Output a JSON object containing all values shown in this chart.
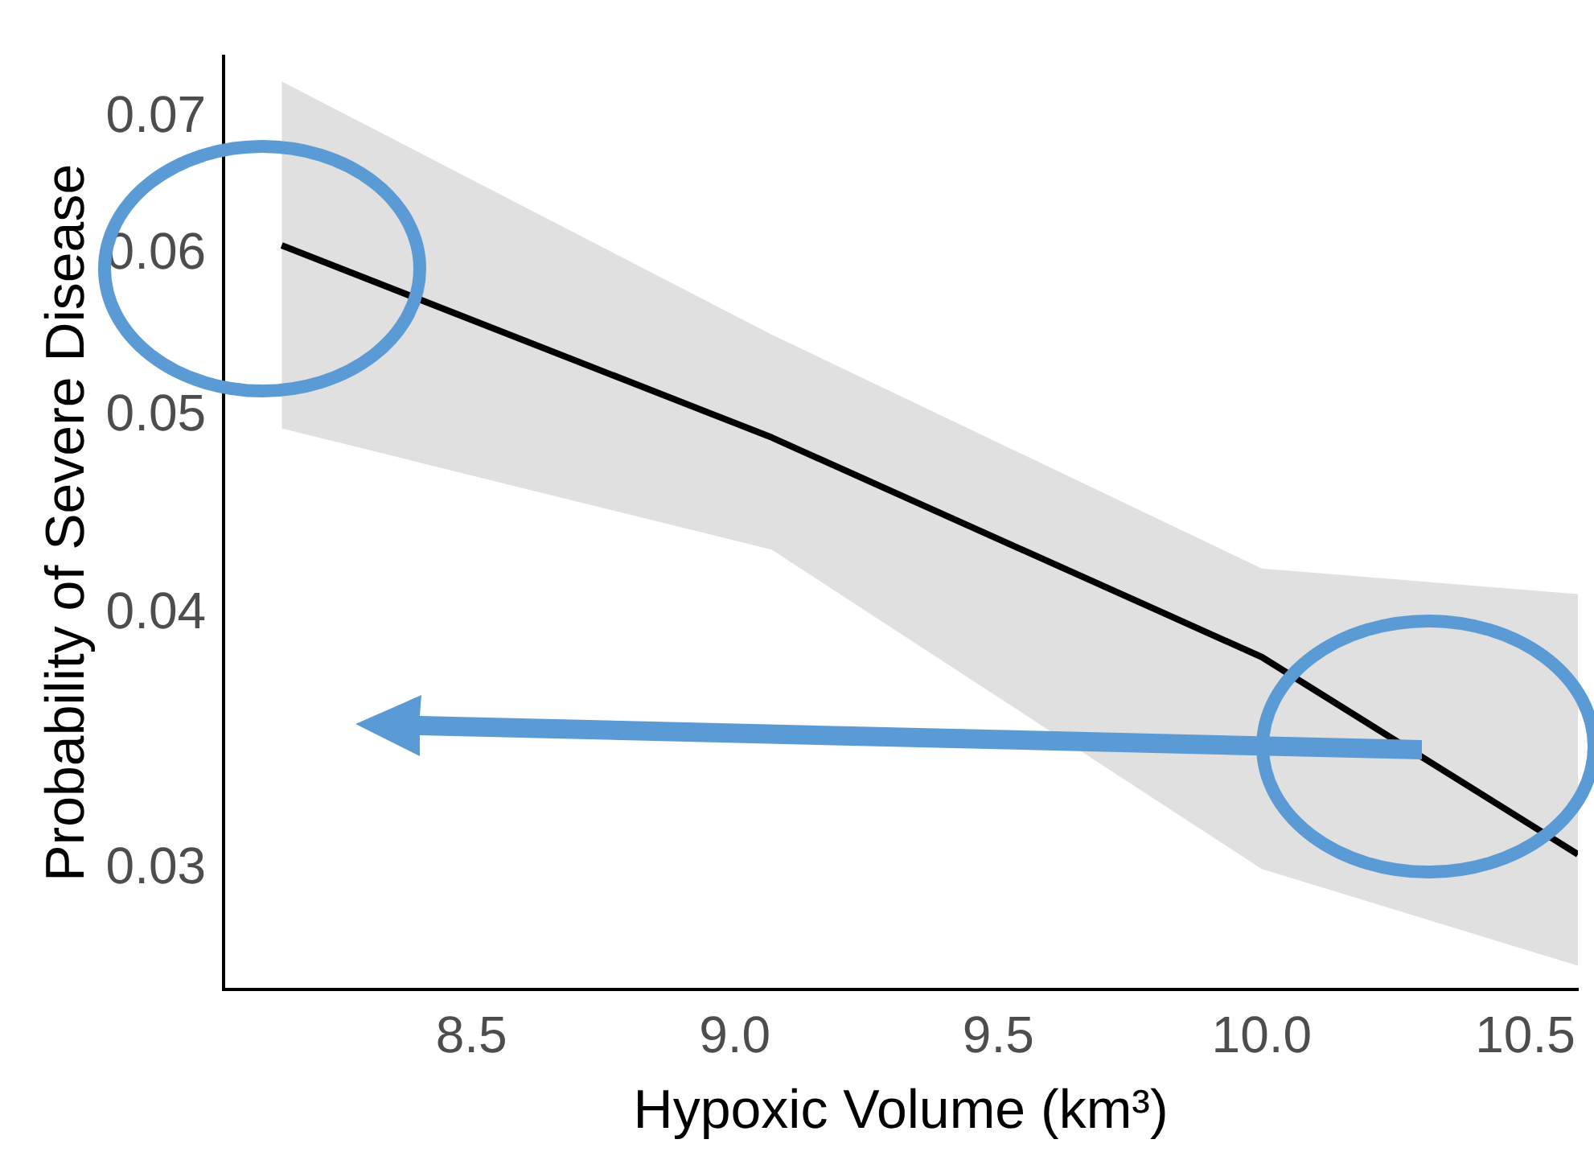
{
  "chart_data": {
    "type": "line",
    "xlabel": "Hypoxic Volume (km³)",
    "ylabel": "Probability of Severe Disease",
    "log": "y",
    "x": [
      8.14,
      9.07,
      10.0,
      10.6
    ],
    "series": [
      {
        "color": "#000000",
        "values": [
          0.0606,
          0.0488,
          0.0381,
          0.0305
        ],
        "lower": [
          0.0493,
          0.043,
          0.03,
          0.0269
        ],
        "upper": [
          0.0729,
          0.0548,
          0.0421,
          0.0409
        ]
      }
    ],
    "xlim": [
      8.03,
      10.6
    ],
    "xticks": [
      8.5,
      {
        "value": 9,
        "label": "9.0"
      },
      9.5,
      {
        "value": 10,
        "label": "10.0"
      },
      10.5
    ],
    "ylim": [
      0.0262,
      0.075
    ],
    "yticks": [
      0.03,
      0.04,
      0.05,
      0.06,
      0.07
    ],
    "grid": false,
    "legend": false,
    "marker": "none",
    "line_style": "solid"
  }
}
